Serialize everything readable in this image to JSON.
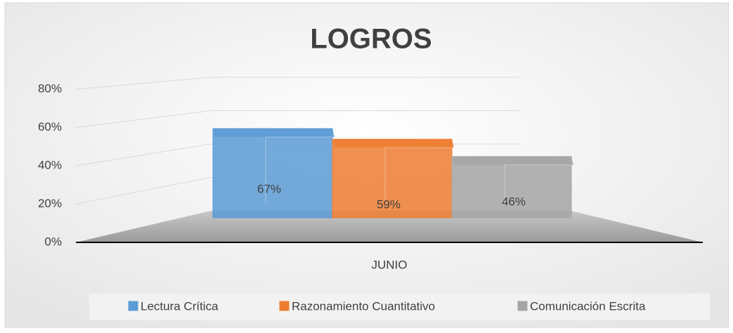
{
  "chart_data": {
    "type": "bar",
    "title": "LOGROS",
    "categories": [
      "JUNIO"
    ],
    "series": [
      {
        "name": "Lectura Crítica",
        "color": "#5b9bd5",
        "values": [
          67
        ],
        "value_labels": [
          "67%"
        ]
      },
      {
        "name": "Razonamiento Cuantitativo",
        "color": "#ed7d31",
        "values": [
          59
        ],
        "value_labels": [
          "59%"
        ]
      },
      {
        "name": "Comunicación Escrita",
        "color": "#a5a5a5",
        "values": [
          46
        ],
        "value_labels": [
          "46%"
        ]
      }
    ],
    "ylim": [
      0,
      80
    ],
    "yticks": [
      {
        "value": 0,
        "label": "0%"
      },
      {
        "value": 20,
        "label": "20%"
      },
      {
        "value": 40,
        "label": "40%"
      },
      {
        "value": 60,
        "label": "60%"
      },
      {
        "value": 80,
        "label": "80%"
      }
    ],
    "grid": true,
    "legend": "bottom"
  }
}
